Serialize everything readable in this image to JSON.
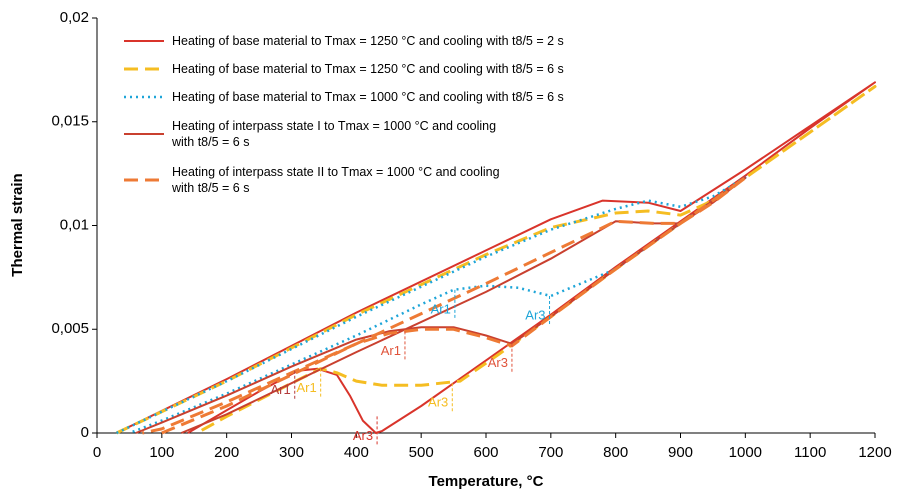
{
  "chart_data": {
    "type": "line",
    "xlabel": "Temperature, °C",
    "ylabel": "Thermal strain",
    "xlim": [
      0,
      1200
    ],
    "xticks": [
      0,
      100,
      200,
      300,
      400,
      500,
      600,
      700,
      800,
      900,
      1000,
      1100,
      1200
    ],
    "ylim": [
      0,
      0.02
    ],
    "yticks": [
      0,
      {
        "value": 0.005,
        "label": "0,005"
      },
      {
        "value": 0.01,
        "label": "0,01"
      },
      {
        "value": 0.015,
        "label": "0,015"
      },
      {
        "value": 0.02,
        "label": "0,02"
      }
    ],
    "series": [
      {
        "name": "Heating of base material to Tmax = 1250 °C and cooling with t8/5 = 2 s",
        "color": "#d9342b",
        "dash": "solid",
        "x": [
          30,
          200,
          400,
          600,
          700,
          780,
          850,
          900,
          1000,
          1100,
          1200,
          1100,
          1000,
          900,
          800,
          700,
          600,
          500,
          440,
          430,
          410,
          390,
          370,
          340,
          310,
          250,
          200,
          140
        ],
        "values": [
          0,
          0.0026,
          0.0058,
          0.0088,
          0.0103,
          0.0112,
          0.0111,
          0.0107,
          0.0127,
          0.0148,
          0.0169,
          0.0147,
          0.0124,
          0.0102,
          0.008,
          0.0057,
          0.0035,
          0.0013,
          0.0001,
          0,
          0.0006,
          0.0018,
          0.0028,
          0.0031,
          0.003,
          0.002,
          0.0011,
          0
        ]
      },
      {
        "name": "Heating of base material to Tmax = 1250 °C and cooling with t8/5 = 6 s",
        "color": "#f5bd22",
        "dash": "dashed",
        "x": [
          30,
          200,
          400,
          600,
          700,
          800,
          850,
          900,
          950,
          1000,
          1100,
          1200,
          1100,
          1000,
          900,
          800,
          700,
          620,
          560,
          500,
          440,
          400,
          370,
          345,
          300,
          250,
          200,
          160
        ],
        "values": [
          0,
          0.0025,
          0.0057,
          0.0086,
          0.0099,
          0.0106,
          0.0107,
          0.0105,
          0.0112,
          0.0123,
          0.0145,
          0.0167,
          0.0145,
          0.0123,
          0.0101,
          0.0079,
          0.0056,
          0.0038,
          0.0025,
          0.0023,
          0.0023,
          0.0025,
          0.0029,
          0.0031,
          0.0024,
          0.0016,
          0.0008,
          0.0001
        ]
      },
      {
        "name": "Heating of base material to Tmax = 1000 °C and cooling with t8/5 = 6 s",
        "color": "#1ea5d8",
        "dash": "dotted",
        "x": [
          30,
          200,
          400,
          600,
          700,
          800,
          850,
          900,
          950,
          1000,
          950,
          900,
          800,
          700,
          650,
          600,
          550,
          500,
          400,
          300,
          200,
          100,
          50
        ],
        "values": [
          0,
          0.0025,
          0.0056,
          0.0085,
          0.0098,
          0.0108,
          0.0112,
          0.0109,
          0.0114,
          0.0123,
          0.0112,
          0.0101,
          0.0079,
          0.0066,
          0.007,
          0.0071,
          0.0069,
          0.0062,
          0.0047,
          0.0033,
          0.0019,
          0.0006,
          0
        ]
      },
      {
        "name": "Heating of interpass state I to Tmax = 1000 °C and cooling with t8/5 = 6 s",
        "color": "#c9402f",
        "dash": "solid",
        "x": [
          130,
          200,
          400,
          600,
          700,
          800,
          860,
          900,
          950,
          1000,
          950,
          900,
          800,
          700,
          640,
          600,
          550,
          500,
          450,
          400,
          300,
          200,
          100,
          60
        ],
        "values": [
          0,
          0.0009,
          0.0039,
          0.0068,
          0.0084,
          0.0102,
          0.0101,
          0.0101,
          0.0111,
          0.0123,
          0.0112,
          0.0101,
          0.0079,
          0.0056,
          0.0043,
          0.0047,
          0.0051,
          0.0051,
          0.0049,
          0.0045,
          0.0032,
          0.0018,
          0.0005,
          0
        ]
      },
      {
        "name": "Heating of interpass state II to Tmax = 1000 °C and cooling with t8/5 = 6 s",
        "color": "#ee7a35",
        "dash": "dashed",
        "x": [
          100,
          200,
          400,
          600,
          700,
          800,
          860,
          900,
          950,
          1000,
          950,
          900,
          800,
          700,
          640,
          600,
          550,
          500,
          450,
          400,
          300,
          200,
          100,
          70
        ],
        "values": [
          0,
          0.0013,
          0.0043,
          0.0072,
          0.0087,
          0.0102,
          0.0101,
          0.0101,
          0.0111,
          0.0123,
          0.0112,
          0.0101,
          0.0079,
          0.0056,
          0.0042,
          0.0046,
          0.005,
          0.005,
          0.0048,
          0.0043,
          0.0029,
          0.0015,
          0.0002,
          0
        ]
      }
    ],
    "annotations": [
      {
        "text": "Ar1",
        "x": 305,
        "y": 0.003,
        "color": "#b33a3a"
      },
      {
        "text": "Ar1",
        "x": 345,
        "y": 0.0031,
        "color": "#f5bd22"
      },
      {
        "text": "Ar3",
        "x": 432,
        "y": 0.0008,
        "color": "#d9342b"
      },
      {
        "text": "Ar1",
        "x": 475,
        "y": 0.0049,
        "color": "#e0533a"
      },
      {
        "text": "Ar3",
        "x": 548,
        "y": 0.0024,
        "color": "#f5bd22"
      },
      {
        "text": "Ar3",
        "x": 640,
        "y": 0.0043,
        "color": "#e0533a"
      },
      {
        "text": "Ar1",
        "x": 552,
        "y": 0.0069,
        "color": "#1ea5d8"
      },
      {
        "text": "Ar3",
        "x": 698,
        "y": 0.0066,
        "color": "#1ea5d8"
      }
    ]
  }
}
